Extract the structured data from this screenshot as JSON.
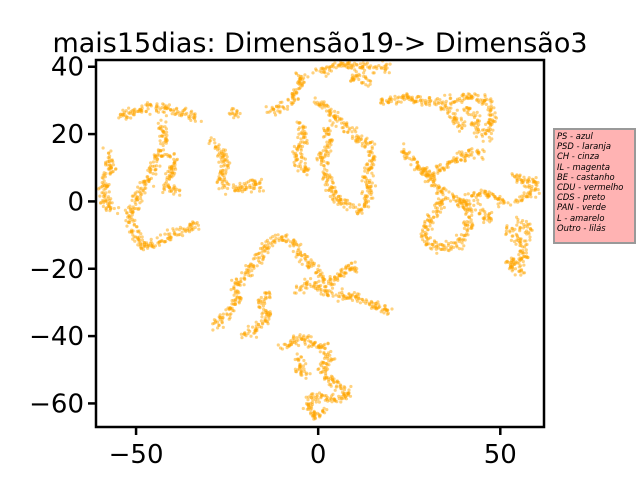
{
  "chart_data": {
    "type": "scatter",
    "title": "mais15dias: Dimensão19-> Dimensão3",
    "xlabel": "",
    "ylabel": "",
    "xlim": [
      -61,
      62
    ],
    "ylim": [
      -67,
      42
    ],
    "x_ticks": [
      -50,
      0,
      50
    ],
    "x_tick_labels": [
      "−50",
      "0",
      "50"
    ],
    "y_ticks": [
      -60,
      -40,
      -20,
      0,
      20,
      40
    ],
    "y_tick_labels": [
      "−60",
      "−40",
      "−20",
      "0",
      "20",
      "40"
    ],
    "grid": false,
    "point_color": "#ffa500",
    "point_alpha": 0.5,
    "clusters": [
      {
        "path": [
          [
            -58,
            15
          ],
          [
            -57,
            10
          ],
          [
            -59,
            4
          ],
          [
            -58,
            -1
          ],
          [
            -55,
            -3
          ]
        ]
      },
      {
        "path": [
          [
            -55,
            25
          ],
          [
            -50,
            27
          ],
          [
            -45,
            28
          ],
          [
            -40,
            27
          ],
          [
            -36,
            26
          ],
          [
            -33,
            24
          ]
        ]
      },
      {
        "path": [
          [
            -43,
            23
          ],
          [
            -42,
            18
          ],
          [
            -44,
            14
          ],
          [
            -46,
            9
          ],
          [
            -48,
            4
          ],
          [
            -50,
            0
          ],
          [
            -52,
            -5
          ],
          [
            -50,
            -10
          ],
          [
            -48,
            -14
          ],
          [
            -44,
            -12
          ],
          [
            -40,
            -10
          ],
          [
            -36,
            -8
          ],
          [
            -33,
            -6
          ]
        ]
      },
      {
        "path": [
          [
            -40,
            14
          ],
          [
            -40,
            9
          ],
          [
            -42,
            4
          ],
          [
            -38,
            3
          ]
        ]
      },
      {
        "path": [
          [
            -25,
            27
          ],
          [
            -22,
            26
          ]
        ]
      },
      {
        "path": [
          [
            -29,
            18
          ],
          [
            -26,
            14
          ],
          [
            -25,
            10
          ],
          [
            -27,
            6
          ],
          [
            -24,
            4
          ],
          [
            -20,
            4
          ],
          [
            -17,
            6
          ],
          [
            -16,
            3
          ]
        ]
      },
      {
        "path": [
          [
            -28,
            -37
          ],
          [
            -25,
            -33
          ],
          [
            -22,
            -29
          ],
          [
            -23,
            -25
          ],
          [
            -20,
            -22
          ],
          [
            -17,
            -18
          ],
          [
            -15,
            -14
          ],
          [
            -12,
            -11
          ],
          [
            -9,
            -11
          ],
          [
            -6,
            -13
          ]
        ]
      },
      {
        "path": [
          [
            -20,
            -40
          ],
          [
            -17,
            -38
          ],
          [
            -14,
            -34
          ],
          [
            -16,
            -30
          ],
          [
            -13,
            -27
          ]
        ]
      },
      {
        "path": [
          [
            -6,
            -14
          ],
          [
            -3,
            -18
          ],
          [
            0,
            -21
          ],
          [
            3,
            -24
          ],
          [
            6,
            -22
          ],
          [
            9,
            -19
          ],
          [
            11,
            -21
          ]
        ]
      },
      {
        "path": [
          [
            -5,
            -27
          ],
          [
            -2,
            -24
          ],
          [
            1,
            -26
          ],
          [
            5,
            -28
          ],
          [
            9,
            -28
          ],
          [
            13,
            -30
          ],
          [
            17,
            -31
          ],
          [
            20,
            -33
          ]
        ]
      },
      {
        "path": [
          [
            -10,
            -43
          ],
          [
            -7,
            -42
          ],
          [
            -4,
            -40
          ],
          [
            -1,
            -43
          ],
          [
            2,
            -43
          ],
          [
            3,
            -47
          ],
          [
            1,
            -50
          ],
          [
            3,
            -53
          ],
          [
            6,
            -55
          ],
          [
            8,
            -57
          ],
          [
            5,
            -59
          ],
          [
            2,
            -58
          ],
          [
            -2,
            -58
          ],
          [
            -3,
            -61
          ],
          [
            -1,
            -64
          ],
          [
            2,
            -62
          ]
        ]
      },
      {
        "path": [
          [
            -3,
            -52
          ],
          [
            -5,
            -50
          ],
          [
            -6,
            -46
          ]
        ]
      },
      {
        "path": [
          [
            -13,
            27
          ],
          [
            -10,
            28
          ],
          [
            -7,
            30
          ],
          [
            -6,
            33
          ],
          [
            -4,
            36
          ],
          [
            -6,
            38
          ]
        ]
      },
      {
        "path": [
          [
            -5,
            24
          ],
          [
            -4,
            19
          ],
          [
            -6,
            15
          ],
          [
            -5,
            11
          ],
          [
            -3,
            8
          ]
        ]
      },
      {
        "path": [
          [
            0,
            38
          ],
          [
            3,
            40
          ],
          [
            7,
            41
          ],
          [
            11,
            40
          ],
          [
            15,
            40
          ],
          [
            19,
            40
          ]
        ]
      },
      {
        "path": [
          [
            -1,
            30
          ],
          [
            2,
            28
          ],
          [
            5,
            25
          ],
          [
            8,
            22
          ],
          [
            11,
            19
          ],
          [
            14,
            17
          ],
          [
            15,
            12
          ],
          [
            13,
            8
          ],
          [
            14,
            3
          ],
          [
            12,
            -1
          ],
          [
            11,
            -4
          ]
        ]
      },
      {
        "path": [
          [
            2,
            22
          ],
          [
            3,
            18
          ],
          [
            1,
            14
          ],
          [
            2,
            10
          ],
          [
            3,
            5
          ],
          [
            4,
            1
          ],
          [
            7,
            0
          ],
          [
            10,
            -2
          ]
        ]
      },
      {
        "path": [
          [
            8,
            36
          ],
          [
            11,
            37
          ],
          [
            14,
            36
          ]
        ]
      },
      {
        "path": [
          [
            17,
            30
          ],
          [
            21,
            30
          ],
          [
            25,
            31
          ],
          [
            29,
            30
          ],
          [
            33,
            29
          ],
          [
            36,
            27
          ],
          [
            38,
            24
          ],
          [
            40,
            22
          ]
        ]
      },
      {
        "path": [
          [
            23,
            15
          ],
          [
            26,
            12
          ],
          [
            29,
            9
          ],
          [
            32,
            6
          ],
          [
            34,
            3
          ],
          [
            34,
            -1
          ],
          [
            32,
            -4
          ],
          [
            30,
            -7
          ],
          [
            29,
            -10
          ],
          [
            31,
            -13
          ],
          [
            34,
            -14
          ],
          [
            37,
            -13
          ]
        ]
      },
      {
        "path": [
          [
            28,
            9
          ],
          [
            31,
            8
          ],
          [
            34,
            10
          ],
          [
            38,
            13
          ],
          [
            41,
            14
          ],
          [
            43,
            15
          ],
          [
            45,
            14
          ]
        ]
      },
      {
        "path": [
          [
            36,
            2
          ],
          [
            39,
            0
          ],
          [
            41,
            -2
          ],
          [
            42,
            -6
          ],
          [
            40,
            -10
          ],
          [
            38,
            -13
          ]
        ]
      },
      {
        "path": [
          [
            36,
            30
          ],
          [
            40,
            31
          ],
          [
            44,
            31
          ],
          [
            47,
            29
          ],
          [
            48,
            26
          ],
          [
            47,
            22
          ],
          [
            46,
            19
          ]
        ]
      },
      {
        "path": [
          [
            41,
            28
          ],
          [
            43,
            24
          ],
          [
            44,
            20
          ]
        ]
      },
      {
        "path": [
          [
            40,
            -1
          ],
          [
            43,
            2
          ],
          [
            46,
            3
          ],
          [
            49,
            1
          ],
          [
            52,
            -1
          ]
        ]
      },
      {
        "path": [
          [
            44,
            -2
          ],
          [
            46,
            -5
          ],
          [
            48,
            -4
          ]
        ]
      },
      {
        "path": [
          [
            53,
            8
          ],
          [
            56,
            6
          ],
          [
            59,
            6
          ],
          [
            60,
            3
          ],
          [
            57,
            2
          ],
          [
            55,
            0
          ]
        ]
      },
      {
        "path": [
          [
            52,
            -8
          ],
          [
            54,
            -10
          ],
          [
            56,
            -13
          ],
          [
            57,
            -16
          ],
          [
            55,
            -18
          ],
          [
            52,
            -18
          ],
          [
            54,
            -21
          ],
          [
            56,
            -20
          ]
        ]
      },
      {
        "path": [
          [
            55,
            -5
          ],
          [
            57,
            -8
          ],
          [
            58,
            -10
          ]
        ]
      }
    ],
    "legend": {
      "placement": "right-outside",
      "entries": [
        "PS - azul",
        "PSD - laranja",
        "CH - cinza",
        "IL - magenta",
        "BE - castanho",
        "CDU - vermelho",
        "CDS - preto",
        "PAN - verde",
        "L - amarelo",
        "Outro - lilás"
      ],
      "background": "#ffb3b3",
      "border_color": "#999999"
    }
  }
}
